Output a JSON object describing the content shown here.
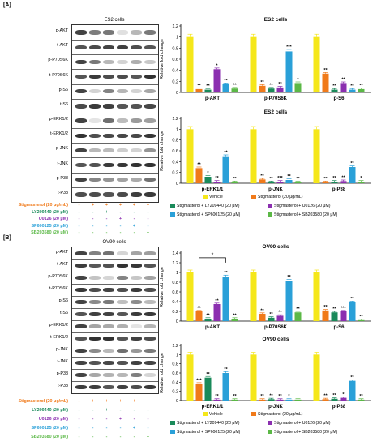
{
  "panels": [
    {
      "label": "[A]",
      "blot_title": "ES2 cells",
      "rows": [
        "p-AKT",
        "t-AKT",
        "p-P70S6K",
        "t-P70S6K",
        "p-S6",
        "t-S6",
        "p-ERK1/2",
        "t-ERK1/2",
        "p-JNK",
        "t-JNK",
        "p-P38",
        "t-P38"
      ],
      "conditions": [
        {
          "label": "Stigmasterol (20 μg/mL)",
          "color": "#f07a1a",
          "signs": [
            "-",
            "+",
            "+",
            "+",
            "+",
            "+"
          ]
        },
        {
          "label": "LY209440 (20 μM)",
          "color": "#1a8a5a",
          "signs": [
            "-",
            "-",
            "+",
            "-",
            "-",
            "-"
          ]
        },
        {
          "label": "U0126 (20 μM)",
          "color": "#8b2fb0",
          "signs": [
            "-",
            "-",
            "-",
            "+",
            "-",
            "-"
          ]
        },
        {
          "label": "SP600125 (20 μM)",
          "color": "#2aa0d8",
          "signs": [
            "-",
            "-",
            "-",
            "-",
            "+",
            "-"
          ]
        },
        {
          "label": "SB203580 (20 μM)",
          "color": "#5bb846",
          "signs": [
            "-",
            "-",
            "-",
            "-",
            "-",
            "+"
          ]
        }
      ]
    },
    {
      "label": "[B]",
      "blot_title": "OV90 cells",
      "rows": [
        "p-AKT",
        "t-AKT",
        "p-P70S6K",
        "t-P70S6K",
        "p-S6",
        "t-S6",
        "p-ERK1/2",
        "t-ERK1/2",
        "p-JNK",
        "t-JNK",
        "p-P38",
        "t-P38"
      ],
      "conditions": [
        {
          "label": "Stigmasterol (20 μg/mL)",
          "color": "#f07a1a",
          "signs": [
            "-",
            "+",
            "+",
            "+",
            "+",
            "+"
          ]
        },
        {
          "label": "LY209440 (20 μM)",
          "color": "#1a8a5a",
          "signs": [
            "-",
            "-",
            "+",
            "-",
            "-",
            "-"
          ]
        },
        {
          "label": "U0126 (20 μM)",
          "color": "#8b2fb0",
          "signs": [
            "-",
            "-",
            "-",
            "+",
            "-",
            "-"
          ]
        },
        {
          "label": "SP600125 (20 μM)",
          "color": "#2aa0d8",
          "signs": [
            "-",
            "-",
            "-",
            "-",
            "+",
            "-"
          ]
        },
        {
          "label": "SB203580 (20 μM)",
          "color": "#5bb846",
          "signs": [
            "-",
            "-",
            "-",
            "-",
            "-",
            "+"
          ]
        }
      ]
    }
  ],
  "legend_items": [
    {
      "label": "Vehicle",
      "color": "#f5e71a"
    },
    {
      "label": "Stigmasterol (20 μg/mL)",
      "color": "#f07a1a"
    },
    {
      "label": "Stigmasterol + LY209440 (20 μM)",
      "color": "#1a8a5a"
    },
    {
      "label": "Stigmasterol + U0126 (20 μM)",
      "color": "#8b2fb0"
    },
    {
      "label": "Stigmasterol + SP600125 (20 μM)",
      "color": "#2aa0d8"
    },
    {
      "label": "Stigmasterol + SB203580 (20 μM)",
      "color": "#5bb846"
    }
  ],
  "legend_B_stig_label": "Stigmasterol (20 μg/mL)",
  "chart_data": [
    {
      "type": "bar",
      "title": "ES2 cells",
      "ylabel": "Relative fold change",
      "ylim": [
        0,
        1.2
      ],
      "yticks": [
        "0",
        "0.2",
        "0.4",
        "0.6",
        "0.8",
        "1",
        "1.2"
      ],
      "categories": [
        "p-AKT",
        "p-P70S6K",
        "p-S6"
      ],
      "series_colors": [
        "#f5e71a",
        "#f07a1a",
        "#1a8a5a",
        "#8b2fb0",
        "#2aa0d8",
        "#5bb846"
      ],
      "values": [
        [
          1.0,
          0.06,
          0.05,
          0.42,
          0.15,
          0.07
        ],
        [
          1.0,
          0.12,
          0.07,
          0.09,
          0.74,
          0.17
        ],
        [
          1.0,
          0.34,
          0.05,
          0.17,
          0.05,
          0.06
        ]
      ],
      "annotations": [
        [
          "",
          "**",
          "**",
          "*",
          "**",
          "**"
        ],
        [
          "",
          "**",
          "**",
          "**",
          "***",
          "*"
        ],
        [
          "",
          "**",
          "**",
          "**",
          "**",
          "**"
        ]
      ],
      "significance": null
    },
    {
      "type": "bar",
      "title": "ES2 cells",
      "ylabel": "Relative fold change",
      "ylim": [
        0,
        1.2
      ],
      "yticks": [
        "0",
        "0.2",
        "0.4",
        "0.6",
        "0.8",
        "1",
        "1.2"
      ],
      "categories": [
        "p-ERK1/1",
        "p-JNK",
        "p-P38"
      ],
      "series_colors": [
        "#f5e71a",
        "#f07a1a",
        "#1a8a5a",
        "#8b2fb0",
        "#2aa0d8",
        "#5bb846"
      ],
      "values": [
        [
          1.0,
          0.28,
          0.12,
          0.03,
          0.5,
          0.02
        ],
        [
          1.0,
          0.07,
          0.02,
          0.03,
          0.06,
          0.02
        ],
        [
          1.0,
          0.02,
          0.03,
          0.04,
          0.3,
          0.03
        ]
      ],
      "annotations": [
        [
          "",
          "**",
          "*",
          "**",
          "**",
          "**"
        ],
        [
          "",
          "**",
          "**",
          "***",
          "**",
          "**"
        ],
        [
          "",
          "**",
          "**",
          "**",
          "**",
          "*"
        ]
      ],
      "significance": null
    },
    {
      "type": "bar",
      "title": "OV90 cells",
      "ylabel": "Relative fold change",
      "ylim": [
        0,
        1.4
      ],
      "yticks": [
        "0",
        "0.2",
        "0.4",
        "0.6",
        "0.8",
        "1",
        "1.2",
        "1.4"
      ],
      "categories": [
        "p-AKT",
        "p-P70S6K",
        "p-S6"
      ],
      "series_colors": [
        "#f5e71a",
        "#f07a1a",
        "#1a8a5a",
        "#8b2fb0",
        "#2aa0d8",
        "#5bb846"
      ],
      "values": [
        [
          1.0,
          0.2,
          0.05,
          0.35,
          0.9,
          0.05
        ],
        [
          1.0,
          0.15,
          0.07,
          0.11,
          0.82,
          0.18
        ],
        [
          1.0,
          0.22,
          0.18,
          0.2,
          0.39,
          0.02
        ]
      ],
      "annotations": [
        [
          "",
          "**",
          "**",
          "**",
          "**",
          "**"
        ],
        [
          "",
          "**",
          "**",
          "**",
          "**",
          "**"
        ],
        [
          "",
          "**",
          "**",
          "***",
          "**",
          "**"
        ]
      ],
      "significance": {
        "label": "*",
        "from_group": 0,
        "from_bar": 1,
        "to_group": 0,
        "to_bar": 4
      }
    },
    {
      "type": "bar",
      "title": "OV90 cells",
      "ylabel": "Relative fold change",
      "ylim": [
        0,
        1.2
      ],
      "yticks": [
        "0",
        "0.2",
        "0.4",
        "0.6",
        "0.8",
        "1",
        "1.2"
      ],
      "categories": [
        "p-ERK1/1",
        "p-JNK",
        "p-P38"
      ],
      "series_colors": [
        "#f5e71a",
        "#f07a1a",
        "#1a8a5a",
        "#8b2fb0",
        "#2aa0d8",
        "#5bb846"
      ],
      "values": [
        [
          1.0,
          0.37,
          0.5,
          0.02,
          0.6,
          0.02
        ],
        [
          1.0,
          0.02,
          0.03,
          0.02,
          0.02,
          0.02
        ],
        [
          1.0,
          0.03,
          0.04,
          0.06,
          0.43,
          0.02
        ]
      ],
      "annotations": [
        [
          "",
          "***",
          "**",
          "**",
          "**",
          "**"
        ],
        [
          "",
          "**",
          "**",
          "**",
          "*",
          ""
        ],
        [
          "",
          "**",
          "**",
          "*",
          "**",
          "**"
        ]
      ],
      "significance": null
    }
  ]
}
